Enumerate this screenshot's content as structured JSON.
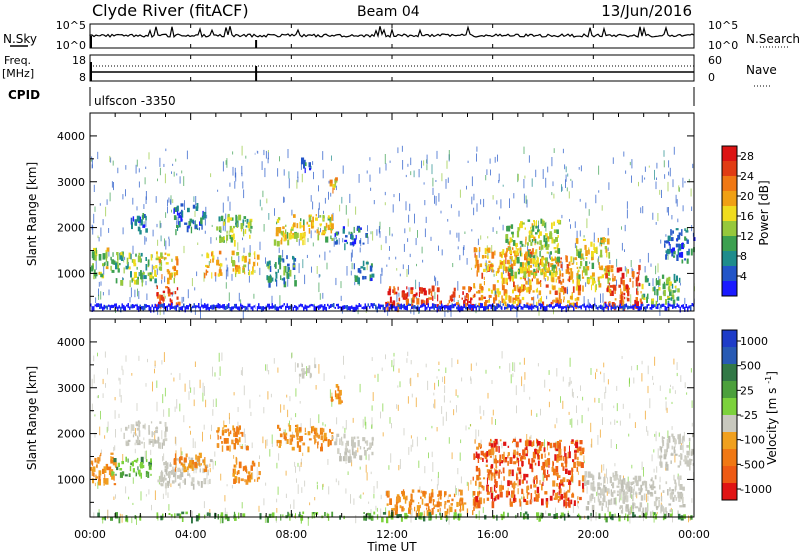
{
  "header": {
    "station": "Clyde River (fitACF)",
    "beam": "Beam 04",
    "date": "13/Jun/2016"
  },
  "nsky_panel": {
    "left_label": "N.Sky",
    "right_label": "N.Search",
    "left_ticks": [
      "10^5",
      "10^0"
    ],
    "right_ticks": [
      "10^5",
      "10^0"
    ]
  },
  "freq_panel": {
    "left_label_line1": "Freq.",
    "left_label_line2": "[MHz]",
    "right_label": "Nave",
    "left_ticks": [
      "18",
      "8"
    ],
    "right_ticks": [
      "60",
      "0"
    ]
  },
  "cpid": {
    "label": "CPID",
    "value": "ulfscon -3350"
  },
  "chart_data": [
    {
      "type": "heatmap",
      "title": "Power",
      "ylabel": "Slant Range [km]",
      "ylim": [
        180,
        4500
      ],
      "yticks": [
        "1000",
        "2000",
        "3000",
        "4000"
      ],
      "xlabel": "",
      "colorbar": {
        "label": "Power [dB]",
        "range": [
          0,
          30
        ],
        "tick_labels": [
          "4",
          "8",
          "12",
          "16",
          "20",
          "24",
          "28"
        ],
        "colors": [
          "#1a1aff",
          "#2255c8",
          "#1e8c8c",
          "#3ca050",
          "#96c83c",
          "#f0dc1e",
          "#f0a014",
          "#f07814",
          "#e13c14",
          "#dc1414"
        ]
      },
      "regions": [
        {
          "t0": 0.0,
          "t1": 0.7,
          "r0": 900,
          "r1": 1600,
          "level": 14
        },
        {
          "t0": 0.8,
          "t1": 2.6,
          "r0": 850,
          "r1": 1500,
          "level": 12
        },
        {
          "t0": 1.6,
          "t1": 2.2,
          "r0": 1900,
          "r1": 2350,
          "level": 6
        },
        {
          "t0": 2.6,
          "t1": 3.5,
          "r0": 300,
          "r1": 800,
          "level": 26
        },
        {
          "t0": 2.6,
          "t1": 3.5,
          "r0": 900,
          "r1": 1500,
          "level": 17
        },
        {
          "t0": 3.3,
          "t1": 4.5,
          "r0": 1950,
          "r1": 2550,
          "level": 6
        },
        {
          "t0": 4.5,
          "t1": 5.2,
          "r0": 1000,
          "r1": 1500,
          "level": 20
        },
        {
          "t0": 5.0,
          "t1": 6.4,
          "r0": 1700,
          "r1": 2300,
          "level": 12
        },
        {
          "t0": 5.6,
          "t1": 6.8,
          "r0": 1000,
          "r1": 1500,
          "level": 17
        },
        {
          "t0": 7.0,
          "t1": 8.2,
          "r0": 800,
          "r1": 1400,
          "level": 8
        },
        {
          "t0": 7.3,
          "t1": 9.6,
          "r0": 1700,
          "r1": 2300,
          "level": 16
        },
        {
          "t0": 8.3,
          "t1": 8.8,
          "r0": 3300,
          "r1": 3550,
          "level": 6
        },
        {
          "t0": 9.5,
          "t1": 9.9,
          "r0": 2700,
          "r1": 3100,
          "level": 18
        },
        {
          "t0": 9.7,
          "t1": 11.0,
          "r0": 1650,
          "r1": 2050,
          "level": 6
        },
        {
          "t0": 10.4,
          "t1": 11.2,
          "r0": 900,
          "r1": 1300,
          "level": 6
        },
        {
          "t0": 11.7,
          "t1": 15.2,
          "r0": 300,
          "r1": 750,
          "level": 26
        },
        {
          "t0": 15.2,
          "t1": 18.0,
          "r0": 300,
          "r1": 1600,
          "level": 20
        },
        {
          "t0": 16.5,
          "t1": 18.6,
          "r0": 1000,
          "r1": 2200,
          "level": 14
        },
        {
          "t0": 18.1,
          "t1": 19.4,
          "r0": 300,
          "r1": 1400,
          "level": 22
        },
        {
          "t0": 19.3,
          "t1": 20.6,
          "r0": 700,
          "r1": 1800,
          "level": 16
        },
        {
          "t0": 20.4,
          "t1": 21.9,
          "r0": 300,
          "r1": 1200,
          "level": 24
        },
        {
          "t0": 21.9,
          "t1": 23.4,
          "r0": 400,
          "r1": 1000,
          "level": 12
        },
        {
          "t0": 22.8,
          "t1": 24.0,
          "r0": 1300,
          "r1": 2000,
          "level": 6
        }
      ]
    },
    {
      "type": "heatmap",
      "title": "Velocity",
      "ylabel": "Slant Range [km]",
      "ylim": [
        180,
        4500
      ],
      "yticks": [
        "1000",
        "2000",
        "3000",
        "4000"
      ],
      "xlabel": "Time UT",
      "xticks": [
        "00:00",
        "04:00",
        "08:00",
        "12:00",
        "16:00",
        "20:00",
        "00:00"
      ],
      "colorbar": {
        "label": "Velocity [m s^-1]",
        "tick_labels": [
          "1000",
          "500",
          "25",
          "-25",
          "-100",
          "-500",
          "-1000"
        ],
        "colors": [
          "#1e3cc8",
          "#285ab4",
          "#327846",
          "#4ca03c",
          "#7cd23c",
          "#c8c8be",
          "#f0a01e",
          "#f07814",
          "#ee5a14",
          "#e01414"
        ]
      },
      "regions": [
        {
          "t0": 0.0,
          "t1": 1.0,
          "r0": 900,
          "r1": 1600,
          "level": "orange"
        },
        {
          "t0": 0.8,
          "t1": 2.4,
          "r0": 1100,
          "r1": 1500,
          "level": "green"
        },
        {
          "t0": 1.2,
          "t1": 3.0,
          "r0": 1800,
          "r1": 2300,
          "level": "grey"
        },
        {
          "t0": 2.6,
          "t1": 4.8,
          "r0": 900,
          "r1": 1500,
          "level": "grey"
        },
        {
          "t0": 3.2,
          "t1": 4.6,
          "r0": 1200,
          "r1": 1600,
          "level": "orange"
        },
        {
          "t0": 5.0,
          "t1": 6.2,
          "r0": 1700,
          "r1": 2200,
          "level": "orange"
        },
        {
          "t0": 5.6,
          "t1": 6.8,
          "r0": 1000,
          "r1": 1500,
          "level": "orange"
        },
        {
          "t0": 7.4,
          "t1": 9.6,
          "r0": 1700,
          "r1": 2200,
          "level": "orange"
        },
        {
          "t0": 8.2,
          "t1": 9.0,
          "r0": 3300,
          "r1": 3550,
          "level": "grey"
        },
        {
          "t0": 9.5,
          "t1": 10.0,
          "r0": 2700,
          "r1": 3100,
          "level": "orange"
        },
        {
          "t0": 9.6,
          "t1": 11.2,
          "r0": 1500,
          "r1": 2000,
          "level": "grey"
        },
        {
          "t0": 11.7,
          "t1": 15.5,
          "r0": 300,
          "r1": 800,
          "level": "orange"
        },
        {
          "t0": 15.2,
          "t1": 19.6,
          "r0": 500,
          "r1": 1900,
          "level": "red-orange"
        },
        {
          "t0": 19.6,
          "t1": 21.2,
          "r0": 400,
          "r1": 1200,
          "level": "grey"
        },
        {
          "t0": 21.0,
          "t1": 23.6,
          "r0": 300,
          "r1": 1100,
          "level": "grey"
        },
        {
          "t0": 22.6,
          "t1": 24.0,
          "r0": 1300,
          "r1": 2000,
          "level": "grey"
        },
        {
          "t0": 0.0,
          "t1": 24.0,
          "r0": 180,
          "r1": 300,
          "level": "green"
        }
      ]
    }
  ]
}
